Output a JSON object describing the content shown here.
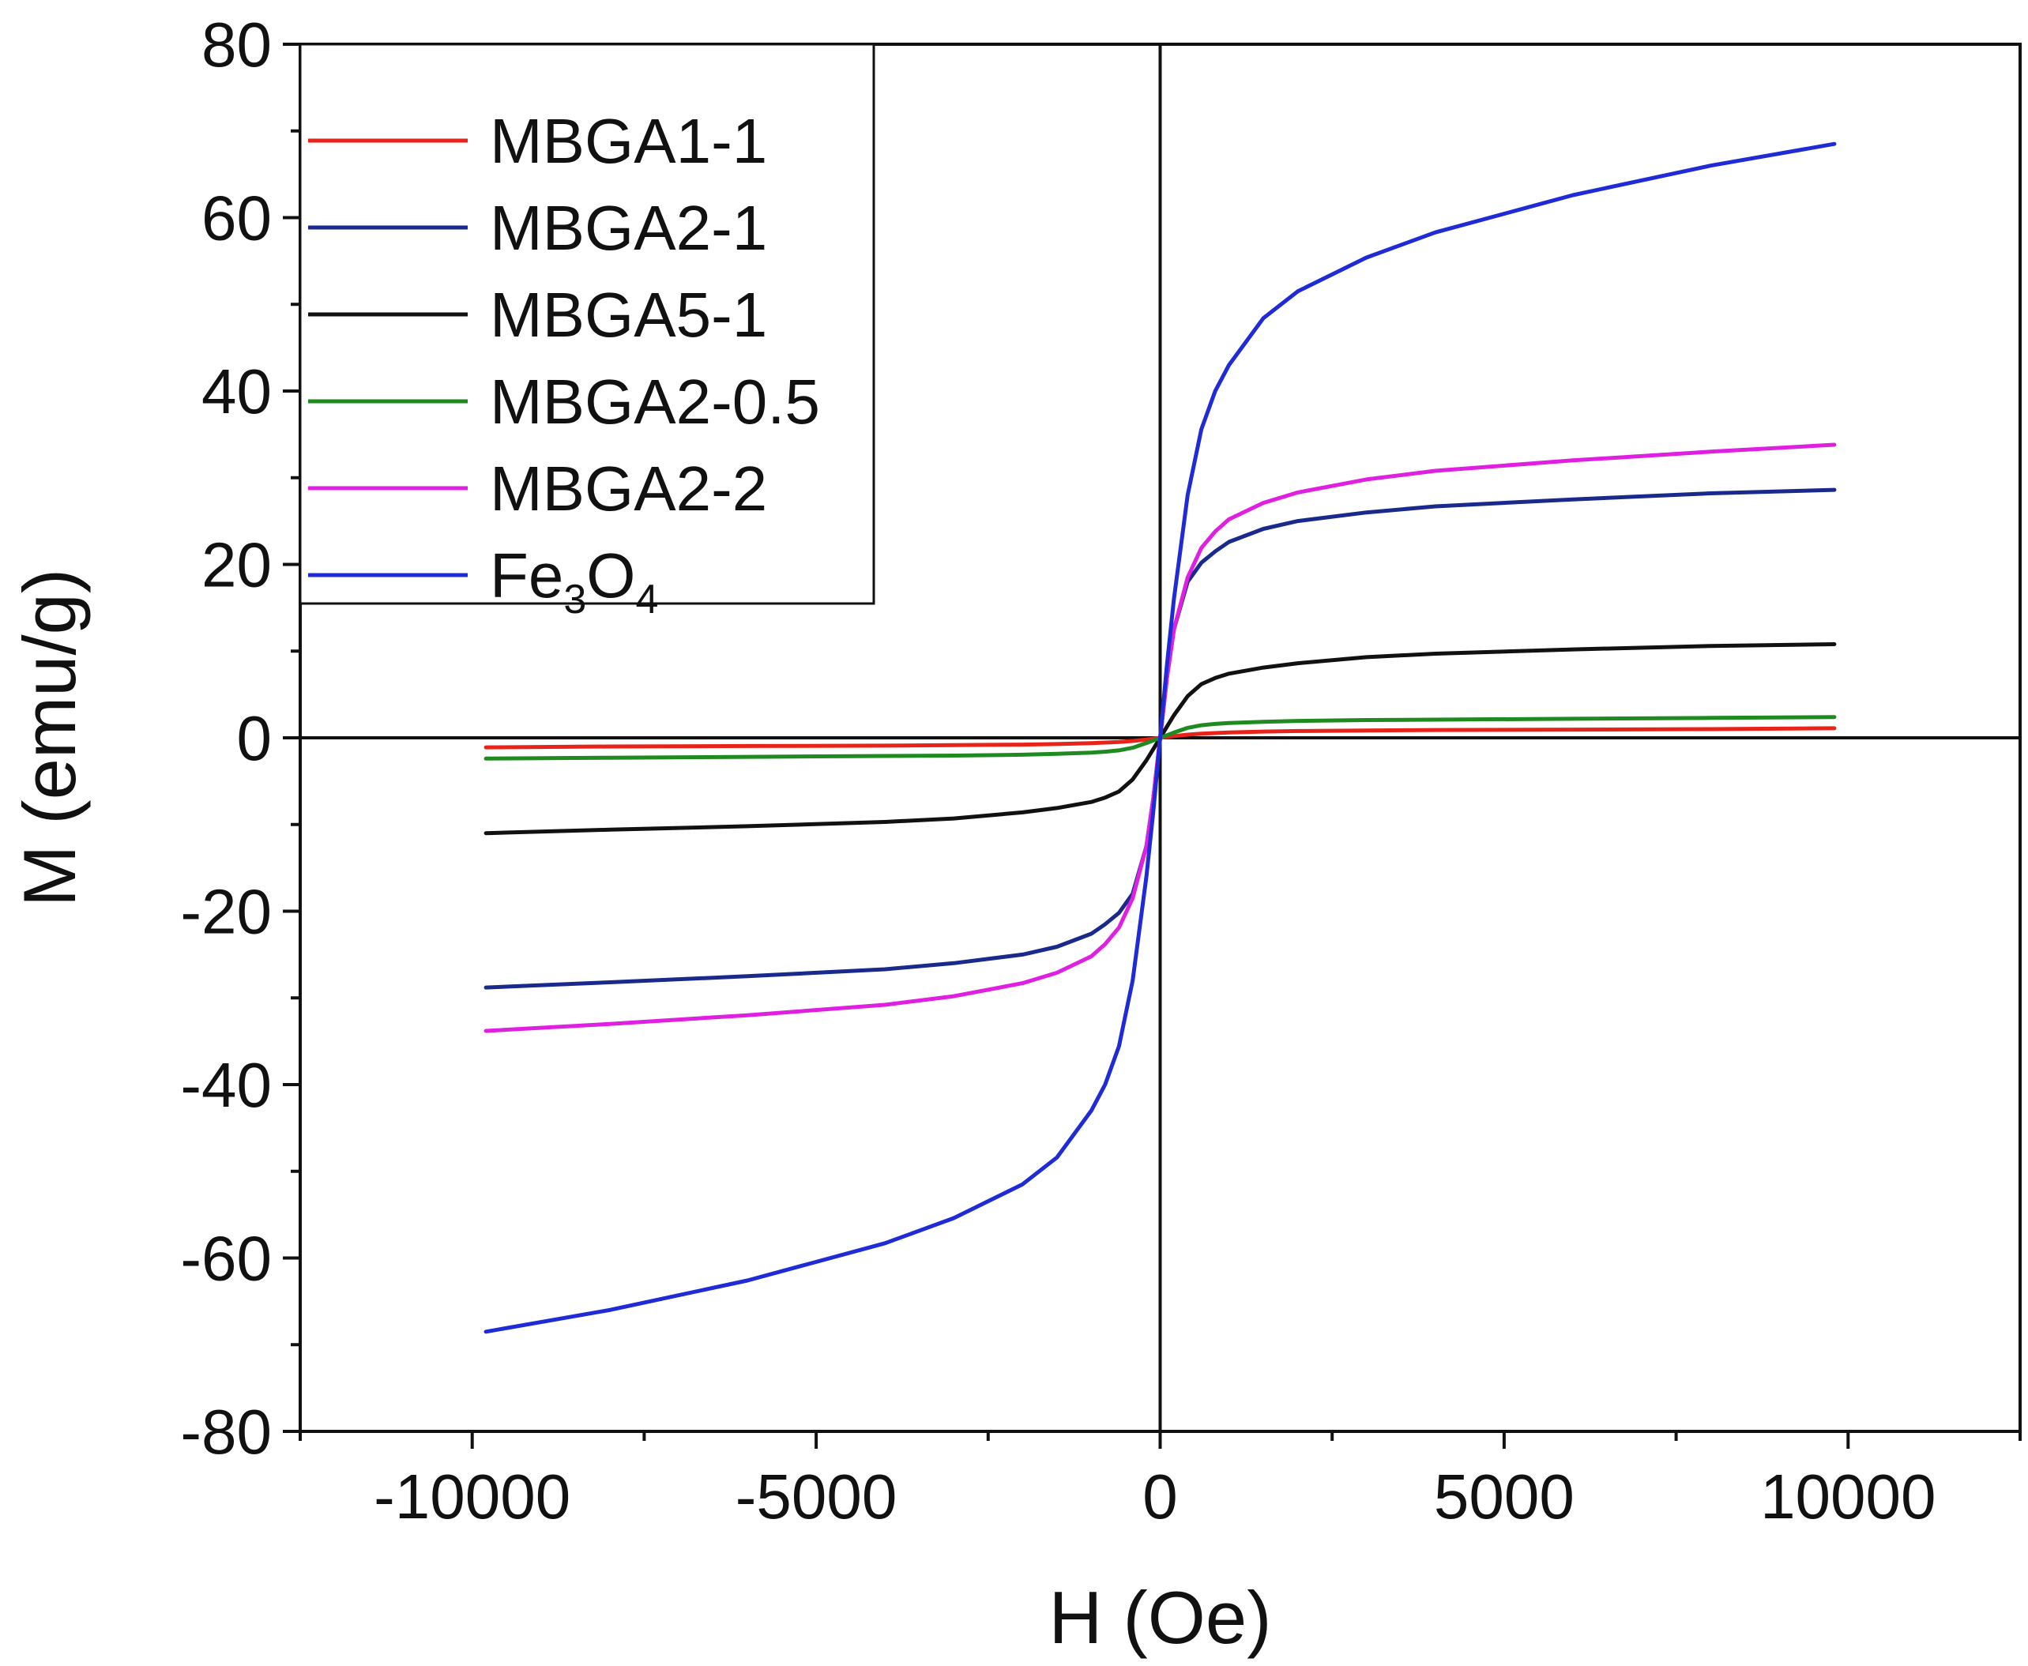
{
  "chart_data": {
    "type": "line",
    "title": "",
    "xlabel": "H (Oe)",
    "ylabel": "M (emu/g)",
    "xlim": [
      -12500,
      12500
    ],
    "ylim": [
      -80,
      80
    ],
    "x_major_ticks": [
      -10000,
      -5000,
      0,
      5000,
      10000
    ],
    "x_tick_labels": [
      "-10000",
      "-5000",
      "0",
      "5000",
      "10000"
    ],
    "y_major_ticks": [
      -80,
      -60,
      -40,
      -20,
      0,
      20,
      40,
      60,
      80
    ],
    "y_tick_labels": [
      "-80",
      "-60",
      "-40",
      "-20",
      "0",
      "20",
      "40",
      "60",
      "80"
    ],
    "zero_lines": true,
    "legend_position": "top-left",
    "x": [
      -9800,
      -8000,
      -6000,
      -4000,
      -3000,
      -2000,
      -1500,
      -1000,
      -800,
      -600,
      -400,
      -200,
      -100,
      0,
      100,
      200,
      400,
      600,
      800,
      1000,
      1500,
      2000,
      3000,
      4000,
      6000,
      8000,
      9800
    ],
    "series": [
      {
        "name": "MBGA1-1",
        "color": "#e8231a",
        "values": [
          -1.1,
          -1.0,
          -0.95,
          -0.9,
          -0.85,
          -0.78,
          -0.72,
          -0.62,
          -0.55,
          -0.47,
          -0.36,
          -0.2,
          -0.1,
          0,
          0.1,
          0.2,
          0.36,
          0.47,
          0.55,
          0.62,
          0.72,
          0.78,
          0.85,
          0.9,
          0.95,
          1.0,
          1.1
        ]
      },
      {
        "name": "MBGA2-1",
        "color": "#1a2a8c",
        "values": [
          -28.8,
          -28.2,
          -27.5,
          -26.7,
          -26.0,
          -25.0,
          -24.1,
          -22.6,
          -21.5,
          -20.2,
          -18.0,
          -12.5,
          -7.0,
          0,
          7.0,
          12.5,
          18.0,
          20.2,
          21.5,
          22.6,
          24.1,
          25.0,
          26.0,
          26.7,
          27.5,
          28.2,
          28.6
        ]
      },
      {
        "name": "MBGA5-1",
        "color": "#111111",
        "values": [
          -11.0,
          -10.6,
          -10.2,
          -9.7,
          -9.3,
          -8.6,
          -8.1,
          -7.4,
          -6.9,
          -6.2,
          -4.8,
          -2.6,
          -1.3,
          0,
          1.3,
          2.6,
          4.8,
          6.2,
          6.9,
          7.4,
          8.1,
          8.6,
          9.3,
          9.7,
          10.2,
          10.6,
          10.8
        ]
      },
      {
        "name": "MBGA2-0.5",
        "color": "#1f8a1f",
        "values": [
          -2.4,
          -2.3,
          -2.2,
          -2.1,
          -2.05,
          -1.95,
          -1.85,
          -1.7,
          -1.6,
          -1.45,
          -1.15,
          -0.6,
          -0.3,
          0,
          0.3,
          0.6,
          1.15,
          1.45,
          1.6,
          1.7,
          1.85,
          1.95,
          2.05,
          2.1,
          2.2,
          2.3,
          2.4
        ]
      },
      {
        "name": "MBGA2-2",
        "color": "#e020e0",
        "values": [
          -33.8,
          -33.0,
          -32.0,
          -30.8,
          -29.8,
          -28.3,
          -27.1,
          -25.2,
          -23.8,
          -21.9,
          -18.5,
          -12.5,
          -7.0,
          0,
          7.0,
          12.5,
          18.5,
          21.9,
          23.8,
          25.2,
          27.1,
          28.3,
          29.8,
          30.8,
          32.0,
          33.0,
          33.8
        ]
      },
      {
        "name": "Fe3O4",
        "color": "#1e2bd6",
        "values": [
          -68.5,
          -66.0,
          -62.6,
          -58.3,
          -55.4,
          -51.5,
          -48.4,
          -43.0,
          -40.0,
          -35.6,
          -28.0,
          -16.0,
          -8.5,
          0,
          8.5,
          16.0,
          28.0,
          35.6,
          40.0,
          43.0,
          48.4,
          51.5,
          55.4,
          58.3,
          62.6,
          66.0,
          68.5
        ]
      }
    ],
    "legend": {
      "entries": [
        {
          "label": "MBGA1-1",
          "color": "#e8231a"
        },
        {
          "label": "MBGA2-1",
          "color": "#1a2a8c"
        },
        {
          "label": "MBGA5-1",
          "color": "#111111"
        },
        {
          "label": "MBGA2-0.5",
          "color": "#1f8a1f"
        },
        {
          "label": "MBGA2-2",
          "color": "#e020e0"
        },
        {
          "label": "Fe3O4",
          "label_base_1": "Fe",
          "label_sub_1": "3",
          "label_base_2": "O",
          "label_sub_2": "4",
          "color": "#1e2bd6"
        }
      ]
    }
  }
}
